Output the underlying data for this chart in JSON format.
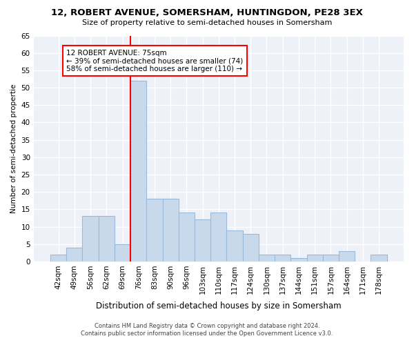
{
  "title": "12, ROBERT AVENUE, SOMERSHAM, HUNTINGDON, PE28 3EX",
  "subtitle": "Size of property relative to semi-detached houses in Somersham",
  "xlabel": "Distribution of semi-detached houses by size in Somersham",
  "ylabel": "Number of semi-detached propertie",
  "categories": [
    "42sqm",
    "49sqm",
    "56sqm",
    "62sqm",
    "69sqm",
    "76sqm",
    "83sqm",
    "90sqm",
    "96sqm",
    "103sqm",
    "110sqm",
    "117sqm",
    "124sqm",
    "130sqm",
    "137sqm",
    "144sqm",
    "151sqm",
    "157sqm",
    "164sqm",
    "171sqm",
    "178sqm"
  ],
  "values": [
    2,
    4,
    13,
    13,
    5,
    52,
    18,
    18,
    14,
    12,
    14,
    9,
    8,
    2,
    2,
    1,
    2,
    2,
    3,
    0,
    2
  ],
  "bar_color": "#c8d9ec",
  "bar_edge_color": "#9ab8d8",
  "red_line_x": 4.5,
  "annotation_text": "12 ROBERT AVENUE: 75sqm\n← 39% of semi-detached houses are smaller (74)\n58% of semi-detached houses are larger (110) →",
  "footer_line1": "Contains HM Land Registry data © Crown copyright and database right 2024.",
  "footer_line2": "Contains public sector information licensed under the Open Government Licence v3.0.",
  "ylim": [
    0,
    65
  ],
  "background_color": "#ffffff",
  "plot_background_color": "#eef2f8"
}
